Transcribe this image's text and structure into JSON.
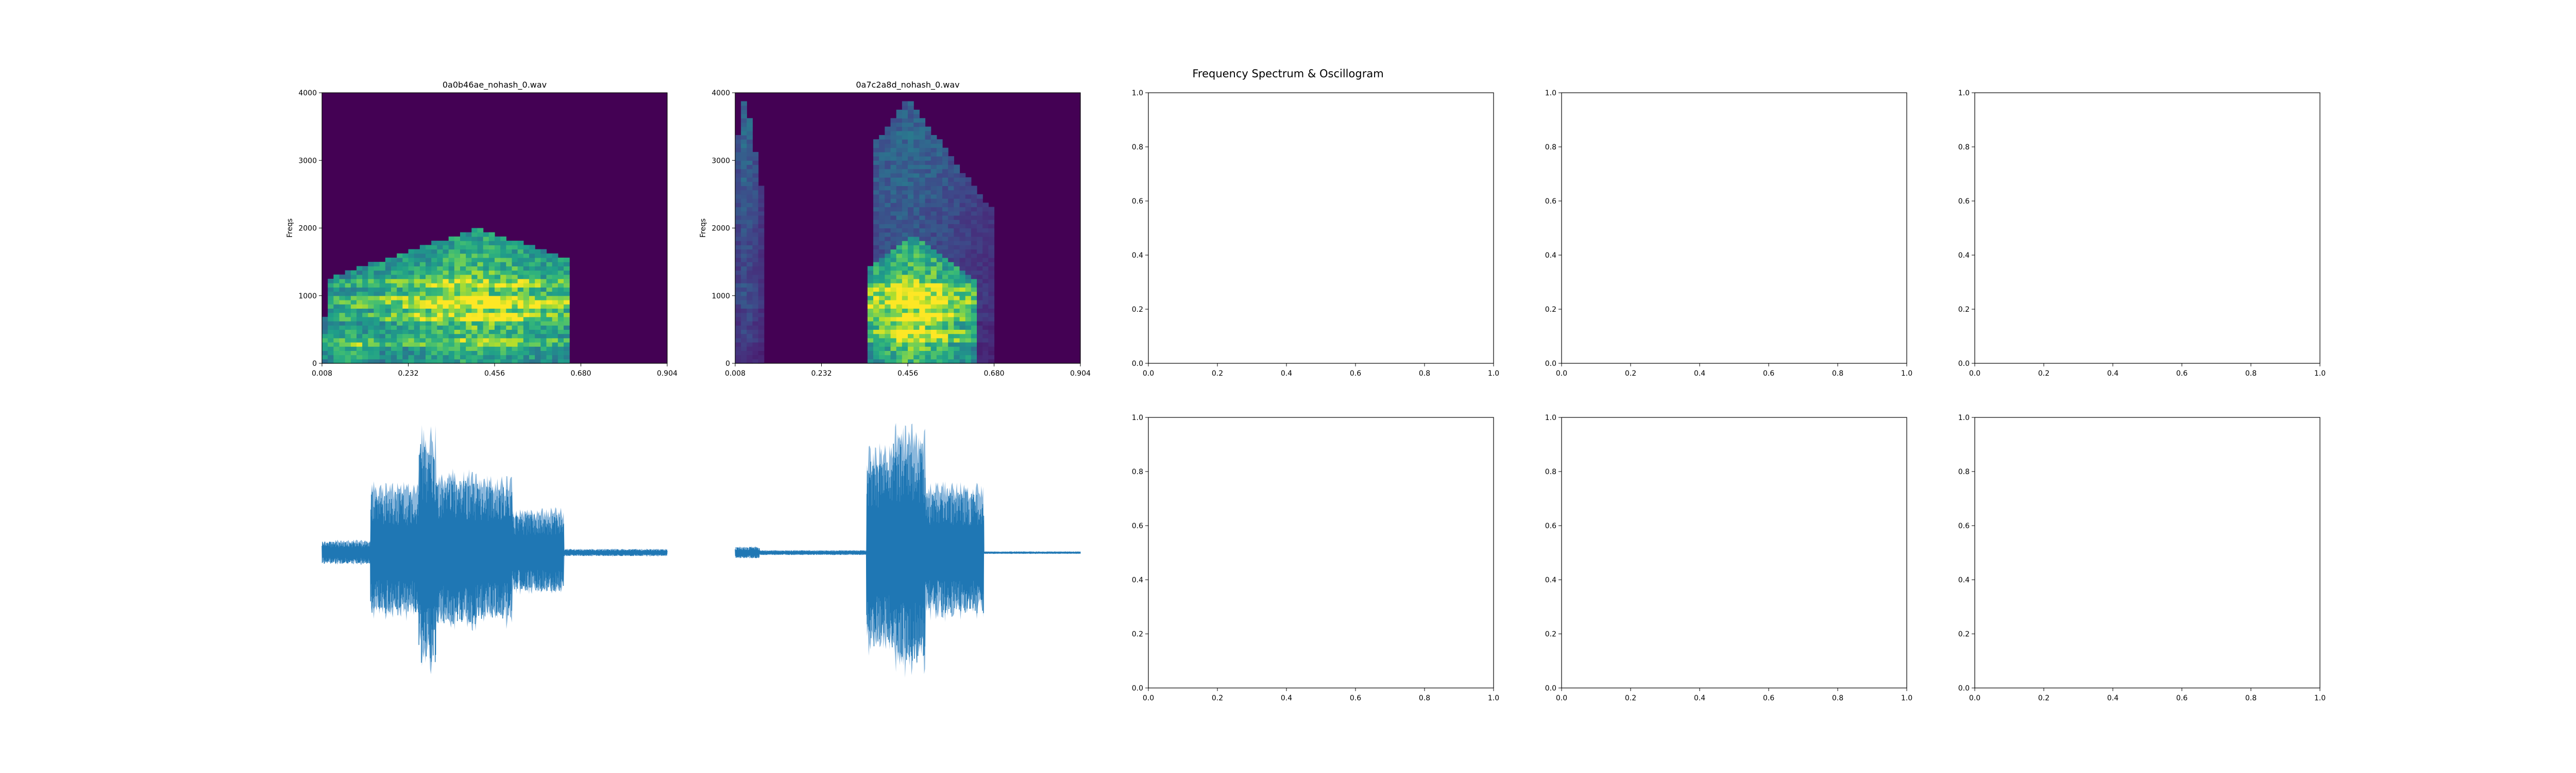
{
  "figure": {
    "title": "Frequency Spectrum & Oscillogram",
    "colors": {
      "background": "#ffffff",
      "axes": "#000000",
      "waveform": "#1f77b4",
      "waveform_envelope": "#8cb8dc",
      "viridis": [
        "#440154",
        "#482878",
        "#3e4989",
        "#31688e",
        "#26828e",
        "#1f9e89",
        "#35b779",
        "#6ece58",
        "#b5de2b",
        "#fde725"
      ]
    }
  },
  "chart_data": [
    {
      "type": "heatmap",
      "title": "0a0b46ae_nohash_0.wav",
      "ylabel": "Freqs",
      "xlabel": "",
      "xticks": [
        "0.008",
        "0.232",
        "0.456",
        "0.680",
        "0.904"
      ],
      "yticks": [
        "0",
        "1000",
        "2000",
        "3000",
        "4000"
      ],
      "xlim": [
        0.008,
        1.0
      ],
      "ylim": [
        0,
        4000
      ],
      "colormap": "viridis",
      "energy_regions": [
        {
          "t_start": 0.02,
          "t_end": 0.72,
          "f_peak": 900,
          "f_top": 2000,
          "t_peak": 0.45,
          "level": 0.85
        },
        {
          "t_start": 0.0,
          "t_end": 0.25,
          "f_peak": 250,
          "f_top": 800,
          "t_peak": 0.08,
          "level": 0.7
        }
      ],
      "bright_bands_hz": [
        300,
        700,
        900,
        1200
      ]
    },
    {
      "type": "heatmap",
      "title": "0a7c2a8d_nohash_0.wav",
      "ylabel": "Freqs",
      "xlabel": "",
      "xticks": [
        "0.008",
        "0.232",
        "0.456",
        "0.680",
        "0.904"
      ],
      "yticks": [
        "0",
        "1000",
        "2000",
        "3000",
        "4000"
      ],
      "xlim": [
        0.008,
        1.0
      ],
      "ylim": [
        0,
        4000
      ],
      "colormap": "viridis",
      "energy_regions": [
        {
          "t_start": 0.39,
          "t_end": 0.7,
          "f_peak": 800,
          "f_top": 1900,
          "t_peak": 0.52,
          "level": 0.95
        },
        {
          "t_start": 0.4,
          "t_end": 0.75,
          "f_peak": 3100,
          "f_top": 3900,
          "t_peak": 0.5,
          "level": 0.35
        },
        {
          "t_start": 0.0,
          "t_end": 0.08,
          "f_peak": 3500,
          "f_top": 4000,
          "t_peak": 0.03,
          "level": 0.35
        }
      ],
      "bright_bands_hz": [
        400,
        700,
        900,
        1100
      ]
    },
    {
      "type": "line",
      "title": "",
      "xlim": [
        0.0,
        1.0
      ],
      "ylim": [
        0.0,
        1.0
      ],
      "xticks": [
        "0.0",
        "0.2",
        "0.4",
        "0.6",
        "0.8",
        "1.0"
      ],
      "yticks": [
        "0.0",
        "0.2",
        "0.4",
        "0.6",
        "0.8",
        "1.0"
      ],
      "series": []
    },
    {
      "type": "line",
      "title": "",
      "xlim": [
        0.0,
        1.0
      ],
      "ylim": [
        0.0,
        1.0
      ],
      "xticks": [
        "0.0",
        "0.2",
        "0.4",
        "0.6",
        "0.8",
        "1.0"
      ],
      "yticks": [
        "0.0",
        "0.2",
        "0.4",
        "0.6",
        "0.8",
        "1.0"
      ],
      "series": []
    },
    {
      "type": "line",
      "title": "",
      "xlim": [
        0.0,
        1.0
      ],
      "ylim": [
        0.0,
        1.0
      ],
      "xticks": [
        "0.0",
        "0.2",
        "0.4",
        "0.6",
        "0.8",
        "1.0"
      ],
      "yticks": [
        "0.0",
        "0.2",
        "0.4",
        "0.6",
        "0.8",
        "1.0"
      ],
      "series": []
    },
    {
      "type": "line",
      "title": "",
      "axis_visible": false,
      "waveform_segments": [
        {
          "t_start": 0.0,
          "t_end": 0.14,
          "amplitude": 0.1
        },
        {
          "t_start": 0.14,
          "t_end": 0.28,
          "amplitude": 0.55
        },
        {
          "t_start": 0.28,
          "t_end": 0.33,
          "amplitude": 1.0
        },
        {
          "t_start": 0.33,
          "t_end": 0.45,
          "amplitude": 0.65
        },
        {
          "t_start": 0.45,
          "t_end": 0.55,
          "amplitude": 0.6
        },
        {
          "t_start": 0.55,
          "t_end": 0.7,
          "amplitude": 0.35
        },
        {
          "t_start": 0.7,
          "t_end": 1.0,
          "amplitude": 0.03
        }
      ]
    },
    {
      "type": "line",
      "title": "",
      "axis_visible": false,
      "waveform_segments": [
        {
          "t_start": 0.0,
          "t_end": 0.07,
          "amplitude": 0.05
        },
        {
          "t_start": 0.07,
          "t_end": 0.38,
          "amplitude": 0.02
        },
        {
          "t_start": 0.38,
          "t_end": 0.45,
          "amplitude": 0.85
        },
        {
          "t_start": 0.45,
          "t_end": 0.55,
          "amplitude": 1.0
        },
        {
          "t_start": 0.55,
          "t_end": 0.72,
          "amplitude": 0.55
        },
        {
          "t_start": 0.72,
          "t_end": 1.0,
          "amplitude": 0.01
        }
      ]
    },
    {
      "type": "line",
      "title": "",
      "xlim": [
        0.0,
        1.0
      ],
      "ylim": [
        0.0,
        1.0
      ],
      "xticks": [
        "0.0",
        "0.2",
        "0.4",
        "0.6",
        "0.8",
        "1.0"
      ],
      "yticks": [
        "0.0",
        "0.2",
        "0.4",
        "0.6",
        "0.8",
        "1.0"
      ],
      "series": []
    },
    {
      "type": "line",
      "title": "",
      "xlim": [
        0.0,
        1.0
      ],
      "ylim": [
        0.0,
        1.0
      ],
      "xticks": [
        "0.0",
        "0.2",
        "0.4",
        "0.6",
        "0.8",
        "1.0"
      ],
      "yticks": [
        "0.0",
        "0.2",
        "0.4",
        "0.6",
        "0.8",
        "1.0"
      ],
      "series": []
    },
    {
      "type": "line",
      "title": "",
      "xlim": [
        0.0,
        1.0
      ],
      "ylim": [
        0.0,
        1.0
      ],
      "xticks": [
        "0.0",
        "0.2",
        "0.4",
        "0.6",
        "0.8",
        "1.0"
      ],
      "yticks": [
        "0.0",
        "0.2",
        "0.4",
        "0.6",
        "0.8",
        "1.0"
      ],
      "series": []
    }
  ]
}
